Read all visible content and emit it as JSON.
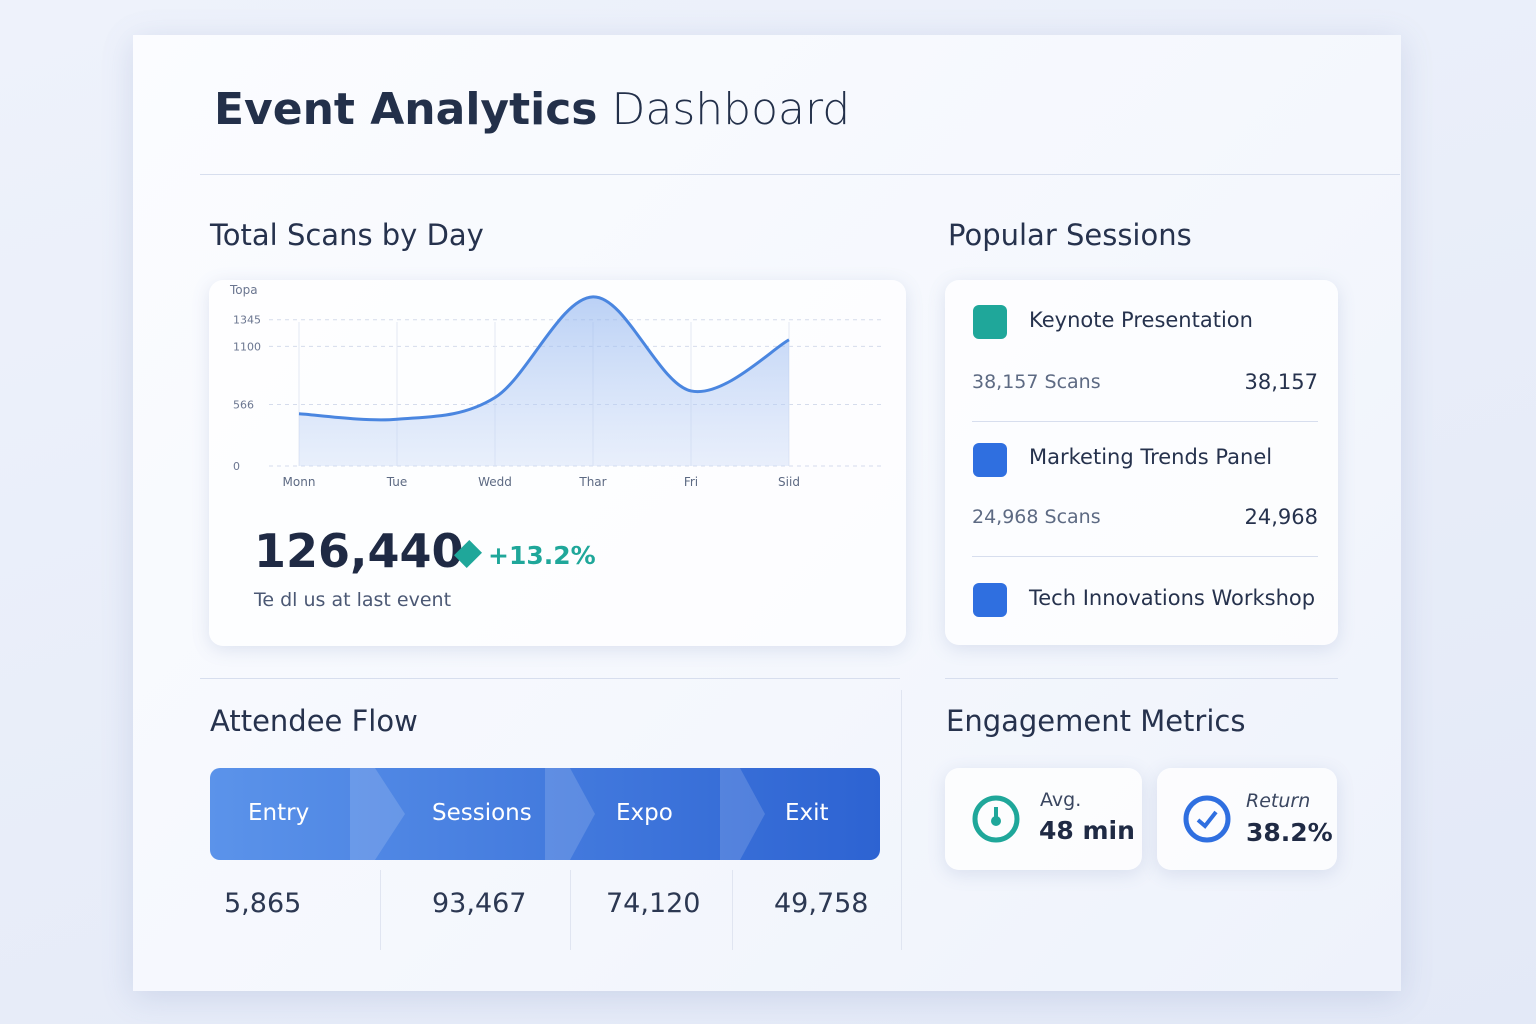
{
  "header": {
    "title": "Event Analytics",
    "title_rest": "Dashboard"
  },
  "scans": {
    "heading": "Total Scans by Day",
    "total": "126,440",
    "change": "+13.2%",
    "caption": "Te dl us at last event"
  },
  "chart_data": {
    "type": "area",
    "y_label": "Topa",
    "categories": [
      "Monn",
      "Tue",
      "Wedd",
      "Thar",
      "Fri",
      "Siid"
    ],
    "values": [
      480,
      430,
      630,
      1555,
      690,
      1160
    ],
    "color": "#4a86e0",
    "ylim": [
      0,
      1600
    ],
    "yticks": [
      0,
      566,
      1100,
      1345
    ],
    "grid": true
  },
  "sessions": {
    "heading": "Popular Sessions",
    "items": [
      {
        "name": "Keynote Presentation",
        "scans": "38,157 Scans",
        "value": "38,157"
      },
      {
        "name": "Marketing Trends Panel",
        "scans": "24,968 Scans",
        "value": "24,968"
      },
      {
        "name": "Tech Innovations Workshop"
      }
    ]
  },
  "flow": {
    "heading": "Attendee Flow",
    "stages": [
      {
        "name": "Entry",
        "value": "5,865"
      },
      {
        "name": "Sessions",
        "value": "93,467"
      },
      {
        "name": "Expo",
        "value": "74,120"
      },
      {
        "name": "Exit",
        "value": "49,758"
      }
    ]
  },
  "engagement": {
    "heading": "Engagement Metrics",
    "metrics": [
      {
        "label": "Avg.",
        "value": "48 min"
      },
      {
        "label": "Return",
        "value": "38.2%"
      }
    ]
  }
}
